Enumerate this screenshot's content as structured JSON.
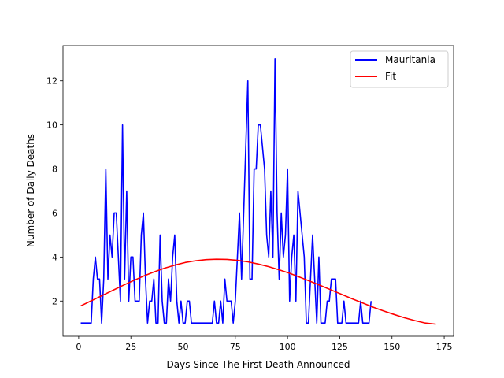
{
  "chart_data": {
    "type": "line",
    "xlabel": "Days Since The First Death Announced",
    "ylabel": "Number of Daily Deaths",
    "xlim": [
      -7.5,
      179.5
    ],
    "ylim": [
      0.4,
      13.6
    ],
    "xticks": [
      0,
      25,
      50,
      75,
      100,
      125,
      150,
      175
    ],
    "yticks": [
      2,
      4,
      6,
      8,
      10,
      12
    ],
    "legend_position": "top-right",
    "series": [
      {
        "name": "Mauritania",
        "color": "#0000ff",
        "x": [
          1,
          2,
          3,
          4,
          5,
          6,
          7,
          8,
          9,
          10,
          11,
          12,
          13,
          14,
          15,
          16,
          17,
          18,
          19,
          20,
          21,
          22,
          23,
          24,
          25,
          26,
          27,
          28,
          29,
          30,
          31,
          32,
          33,
          34,
          35,
          36,
          37,
          38,
          39,
          40,
          41,
          42,
          43,
          44,
          45,
          46,
          47,
          48,
          49,
          50,
          51,
          52,
          53,
          54,
          55,
          56,
          57,
          58,
          59,
          60,
          61,
          62,
          63,
          64,
          65,
          66,
          67,
          68,
          69,
          70,
          71,
          72,
          73,
          74,
          75,
          76,
          77,
          78,
          79,
          80,
          81,
          82,
          83,
          84,
          85,
          86,
          87,
          88,
          89,
          90,
          91,
          92,
          93,
          94,
          95,
          96,
          97,
          98,
          99,
          100,
          101,
          102,
          103,
          104,
          105,
          106,
          107,
          108,
          109,
          110,
          111,
          112,
          113,
          114,
          115,
          116,
          117,
          118,
          119,
          120,
          121,
          122,
          123,
          124,
          125,
          126,
          127,
          128,
          129,
          130,
          131,
          132,
          133,
          134,
          135,
          136,
          137,
          138,
          139,
          140
        ],
        "y": [
          1,
          1,
          1,
          1,
          1,
          1,
          3,
          4,
          3,
          3,
          1,
          3,
          8,
          3,
          5,
          4,
          6,
          6,
          4,
          2,
          10,
          3,
          7,
          2,
          4,
          4,
          2,
          2,
          2,
          5,
          6,
          3,
          1,
          2,
          2,
          3,
          1,
          1,
          5,
          2,
          1,
          1,
          3,
          2,
          4,
          5,
          2,
          1,
          2,
          1,
          1,
          2,
          2,
          1,
          1,
          1,
          1,
          1,
          1,
          1,
          1,
          1,
          1,
          1,
          2,
          1,
          1,
          2,
          1,
          3,
          2,
          2,
          2,
          1,
          2,
          4,
          6,
          3,
          6,
          9,
          12,
          3,
          3,
          8,
          8,
          10,
          10,
          9,
          8,
          5,
          4,
          7,
          4,
          13,
          6,
          3,
          6,
          4,
          5,
          8,
          2,
          4,
          5,
          2,
          7,
          6,
          5,
          4,
          1,
          1,
          3,
          5,
          3,
          1,
          4,
          1,
          1,
          1,
          2,
          2,
          3,
          3,
          3,
          1,
          1,
          1,
          2,
          1,
          1,
          1,
          1,
          1,
          1,
          1,
          2,
          1,
          1,
          1,
          1,
          2
        ]
      },
      {
        "name": "Fit",
        "color": "#ff0000",
        "x": [
          1,
          6,
          11,
          16,
          21,
          26,
          31,
          36,
          41,
          46,
          51,
          56,
          61,
          66,
          71,
          76,
          81,
          86,
          91,
          96,
          101,
          106,
          111,
          116,
          121,
          126,
          131,
          136,
          141,
          146,
          151,
          156,
          161,
          166,
          171
        ],
        "y": [
          1.78,
          2.01,
          2.24,
          2.47,
          2.7,
          2.92,
          3.13,
          3.32,
          3.49,
          3.63,
          3.75,
          3.83,
          3.88,
          3.9,
          3.89,
          3.85,
          3.78,
          3.68,
          3.56,
          3.42,
          3.26,
          3.08,
          2.89,
          2.7,
          2.5,
          2.3,
          2.1,
          1.91,
          1.72,
          1.55,
          1.39,
          1.24,
          1.11,
          1.0,
          0.95
        ]
      }
    ]
  }
}
